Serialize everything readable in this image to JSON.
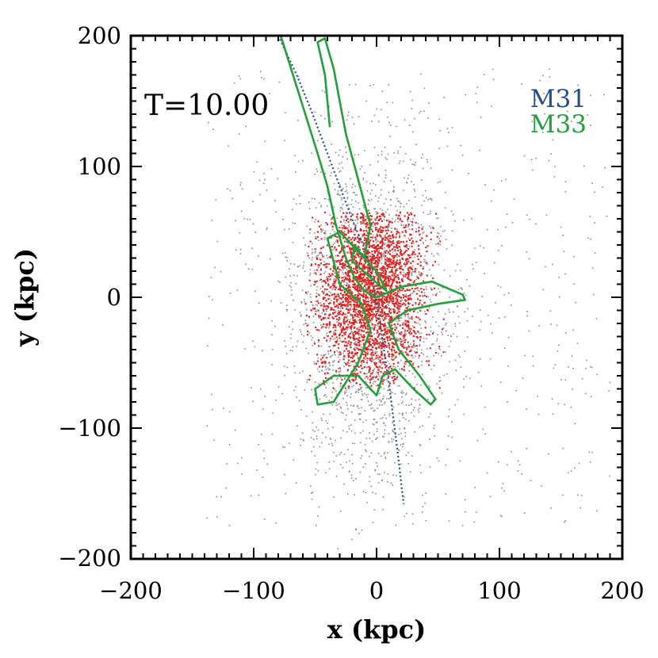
{
  "chart_data": {
    "type": "scatter",
    "title": "",
    "xlabel": "x (kpc)",
    "ylabel": "y (kpc)",
    "xlim": [
      -200,
      200
    ],
    "ylim": [
      -200,
      200
    ],
    "x_ticks": [
      -200,
      -100,
      0,
      100,
      200
    ],
    "y_ticks": [
      -200,
      -100,
      0,
      100,
      200
    ],
    "x_tick_labels": [
      "−200",
      "−100",
      "0",
      "100",
      "200"
    ],
    "y_tick_labels": [
      "−200",
      "−100",
      "0",
      "100",
      "200"
    ],
    "grid": false,
    "annotation": "T=10.00",
    "legend_position": "top-right",
    "series": [
      {
        "name": "M31",
        "kind": "trajectory",
        "color": "#1f4e8c",
        "points": [
          [
            -80,
            200
          ],
          [
            -65,
            170
          ],
          [
            -52,
            140
          ],
          [
            -40,
            110
          ],
          [
            -28,
            80
          ],
          [
            -18,
            55
          ],
          [
            -10,
            38
          ],
          [
            -6,
            25
          ],
          [
            -3,
            10
          ],
          [
            0,
            -5
          ],
          [
            3,
            -20
          ],
          [
            6,
            -40
          ],
          [
            10,
            -65
          ],
          [
            14,
            -95
          ],
          [
            18,
            -125
          ],
          [
            22,
            -158
          ]
        ]
      },
      {
        "name": "M33",
        "kind": "trajectory",
        "color": "#22a03a",
        "points": [
          [
            -78,
            200
          ],
          [
            -68,
            170
          ],
          [
            -58,
            140
          ],
          [
            -48,
            110
          ],
          [
            -40,
            85
          ],
          [
            -33,
            55
          ],
          [
            -25,
            30
          ],
          [
            -18,
            15
          ],
          [
            -10,
            5
          ],
          [
            0,
            0
          ],
          [
            20,
            8
          ],
          [
            45,
            12
          ],
          [
            70,
            2
          ],
          [
            72,
            -2
          ],
          [
            50,
            -5
          ],
          [
            25,
            -10
          ],
          [
            10,
            -20
          ],
          [
            18,
            -40
          ],
          [
            35,
            -60
          ],
          [
            48,
            -78
          ],
          [
            44,
            -82
          ],
          [
            30,
            -70
          ],
          [
            15,
            -55
          ],
          [
            5,
            -60
          ],
          [
            0,
            -75
          ],
          [
            -5,
            -70
          ],
          [
            -15,
            -60
          ],
          [
            -35,
            -60
          ],
          [
            -50,
            -70
          ],
          [
            -48,
            -82
          ],
          [
            -35,
            -80
          ],
          [
            -15,
            -50
          ],
          [
            -5,
            -25
          ],
          [
            -12,
            -5
          ],
          [
            -30,
            10
          ],
          [
            -40,
            45
          ],
          [
            -30,
            50
          ],
          [
            -15,
            35
          ],
          [
            0,
            20
          ],
          [
            8,
            5
          ],
          [
            -5,
            15
          ],
          [
            -20,
            28
          ],
          [
            -18,
            40
          ],
          [
            -10,
            30
          ],
          [
            -5,
            55
          ],
          [
            -15,
            90
          ],
          [
            -25,
            125
          ],
          [
            -30,
            150
          ],
          [
            -35,
            175
          ],
          [
            -42,
            198
          ],
          [
            -48,
            195
          ],
          [
            -42,
            170
          ],
          [
            -40,
            150
          ],
          [
            -38,
            130
          ]
        ]
      },
      {
        "name": "gray particles",
        "kind": "particle-cloud",
        "color": "#8a8a8a",
        "center": [
          -5,
          -10
        ],
        "spread": [
          30,
          60
        ],
        "halo_extent": [
          -140,
          190,
          -175,
          175
        ],
        "count": 2600
      },
      {
        "name": "red particles",
        "kind": "particle-cloud",
        "color": "#e2201c",
        "center": [
          -5,
          5
        ],
        "spread": [
          22,
          38
        ],
        "extent": [
          -58,
          55,
          -70,
          65
        ],
        "count": 2400
      }
    ],
    "legend": [
      {
        "label": "M31",
        "color": "#1f4e8c"
      },
      {
        "label": "M33",
        "color": "#22a03a"
      }
    ]
  }
}
